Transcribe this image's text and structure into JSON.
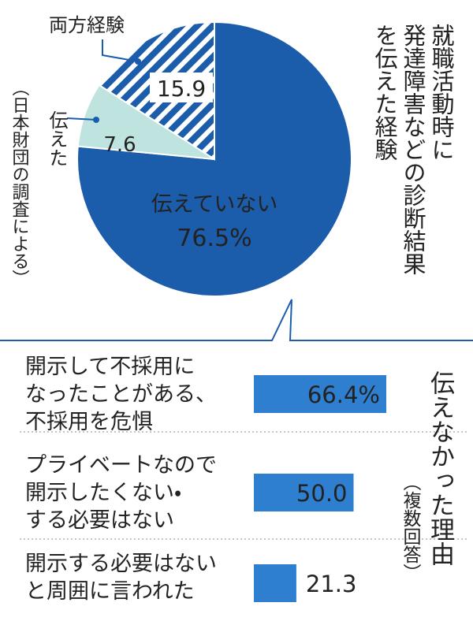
{
  "chart_data": [
    {
      "type": "pie",
      "title": [
        "就職活動時に",
        "発達障害などの診断結果",
        "を伝えた経験"
      ],
      "source": "（日本財団の調査による）",
      "categories": [
        "伝えていない",
        "伝えた",
        "両方経験"
      ],
      "values": [
        76.5,
        7.6,
        15.9
      ],
      "value_labels": [
        "76.5%",
        "7.6",
        "15.9"
      ],
      "colors": [
        "#1b5cab",
        "#bfe3de",
        "#1b5cab"
      ],
      "hatched": [
        false,
        false,
        true
      ]
    },
    {
      "type": "barh",
      "title": "伝えなかった理由",
      "subtitle": "（複数回答）",
      "categories": [
        [
          "開示して不採用に",
          "なったことがある、",
          "不採用を危惧"
        ],
        [
          "プライベートなので",
          "開示したくない・",
          "する必要はない"
        ],
        [
          "開示する必要はない",
          "と周囲に言われた"
        ]
      ],
      "values": [
        66.4,
        50.0,
        21.3
      ],
      "value_labels": [
        "66.4%",
        "50.0",
        "21.3"
      ],
      "color": "#2e7fd0"
    }
  ]
}
